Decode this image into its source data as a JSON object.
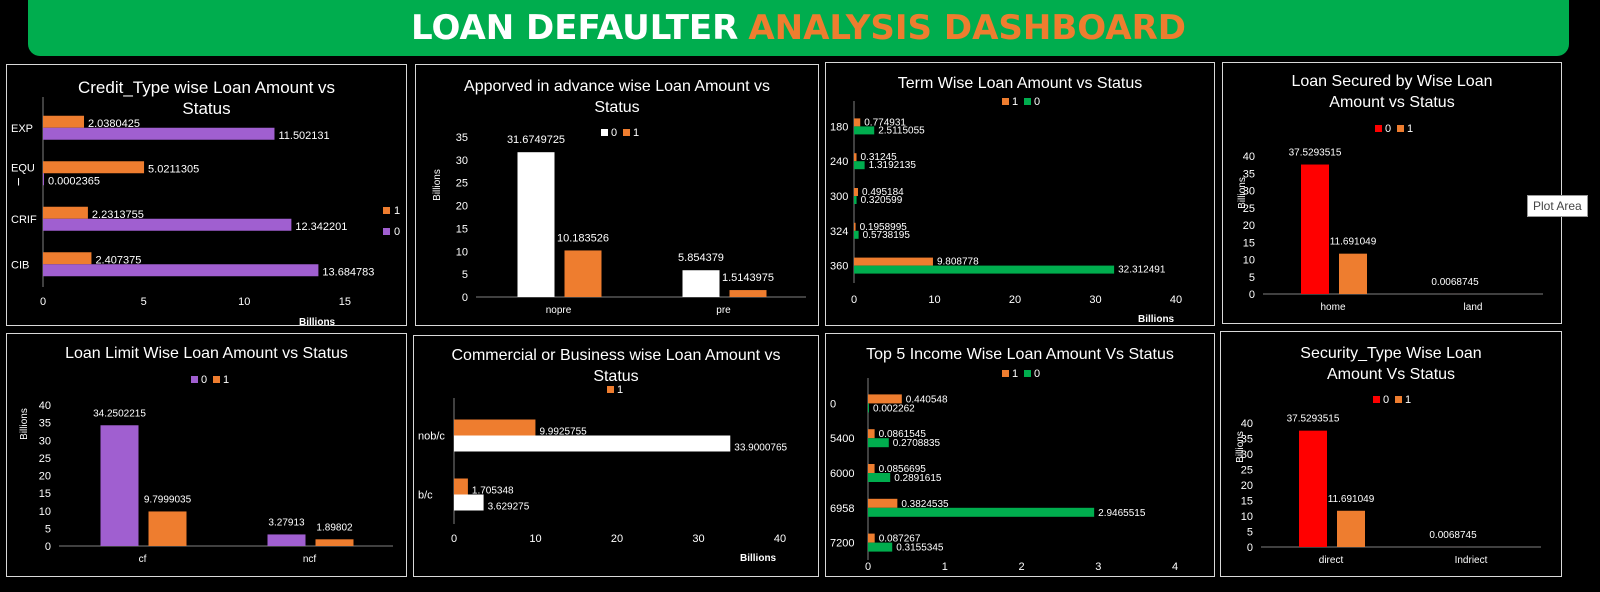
{
  "banner": {
    "title_white": "LOAN DEFAULTER",
    "title_orange": "ANALYSIS DASHBOARD"
  },
  "tooltip": "Plot Area",
  "colors": {
    "green": "#00ad4e",
    "orange": "#ee7d2f",
    "purple": "#a05fd0",
    "white": "#ffffff",
    "red": "#ff0000"
  },
  "chart_data": [
    {
      "id": "credit_type",
      "type": "bar",
      "orientation": "horizontal",
      "title": "Credit_Type wise Loan Amount vs Status",
      "categories": [
        "EXP",
        "EQU I",
        "CRIF",
        "CIB"
      ],
      "series": [
        {
          "name": "1",
          "color": "orange",
          "values": [
            2.0380425,
            5.0211305,
            2.2313755,
            2.407375
          ],
          "labels": [
            "2.0380425",
            "5.0211305",
            "2.2313755",
            "2.407375"
          ]
        },
        {
          "name": "0",
          "color": "purple",
          "values": [
            11.502131,
            0.0002365,
            12.342201,
            13.684783
          ],
          "labels": [
            "11.502131",
            "0.0002365",
            "12.342201",
            "13.684783"
          ]
        }
      ],
      "ticks": [
        "0",
        "5",
        "10",
        "15"
      ],
      "tick_values": [
        0,
        5,
        10,
        15
      ],
      "xlim": [
        0,
        16
      ],
      "unit_label": "Billions",
      "legend": "right"
    },
    {
      "id": "approved",
      "type": "bar",
      "orientation": "vertical",
      "title": "Apporved in advance wise Loan Amount vs Status",
      "categories": [
        "nopre",
        "pre"
      ],
      "series": [
        {
          "name": "0",
          "color": "white",
          "values": [
            31.6749725,
            5.854379
          ],
          "labels": [
            "31.6749725",
            "5.854379"
          ]
        },
        {
          "name": "1",
          "color": "orange",
          "values": [
            10.183526,
            1.5143975
          ],
          "labels": [
            "10.183526",
            "1.5143975"
          ]
        }
      ],
      "ticks": [
        "0",
        "5",
        "10",
        "15",
        "20",
        "25",
        "30",
        "35"
      ],
      "tick_values": [
        0,
        5,
        10,
        15,
        20,
        25,
        30,
        35
      ],
      "ylim": [
        0,
        35
      ],
      "unit_label": "Billions",
      "legend": "top"
    },
    {
      "id": "term",
      "type": "bar",
      "orientation": "horizontal",
      "title": "Term Wise Loan Amount vs Status",
      "categories": [
        "180",
        "240",
        "300",
        "324",
        "360"
      ],
      "series": [
        {
          "name": "1",
          "color": "orange",
          "values": [
            0.774931,
            0.31245,
            0.495184,
            0.1958995,
            9.808778
          ],
          "labels": [
            "0.774931",
            "0.31245",
            "0.495184",
            "0.1958995",
            "9.808778"
          ]
        },
        {
          "name": "0",
          "color": "green",
          "values": [
            2.5115055,
            1.3192135,
            0.320599,
            0.5738195,
            32.312491
          ],
          "labels": [
            "2.5115055",
            "1.3192135",
            "0.320599",
            "0.5738195",
            "32.312491"
          ]
        }
      ],
      "ticks": [
        "0",
        "10",
        "20",
        "30",
        "40"
      ],
      "tick_values": [
        0,
        10,
        20,
        30,
        40
      ],
      "xlim": [
        0,
        40
      ],
      "unit_label": "Billions",
      "legend": "top"
    },
    {
      "id": "secured",
      "type": "bar",
      "orientation": "vertical",
      "title": "Loan Secured by Wise Loan Amount vs Status",
      "categories": [
        "home",
        "land"
      ],
      "series": [
        {
          "name": "0",
          "color": "red",
          "values": [
            37.5293515,
            0.0068745
          ],
          "labels": [
            "37.5293515",
            "0.0068745"
          ]
        },
        {
          "name": "1",
          "color": "orange",
          "values": [
            11.691049,
            0
          ],
          "labels": [
            "11.691049",
            ""
          ]
        }
      ],
      "ticks": [
        "0",
        "5",
        "10",
        "15",
        "20",
        "25",
        "30",
        "35",
        "40"
      ],
      "tick_values": [
        0,
        5,
        10,
        15,
        20,
        25,
        30,
        35,
        40
      ],
      "ylim": [
        0,
        40
      ],
      "unit_label": "Billions",
      "legend": "top"
    },
    {
      "id": "limit",
      "type": "bar",
      "orientation": "vertical",
      "title": "Loan Limit Wise Loan Amount vs Status",
      "categories": [
        "cf",
        "ncf"
      ],
      "series": [
        {
          "name": "0",
          "color": "purple",
          "values": [
            34.2502215,
            3.27913
          ],
          "labels": [
            "34.2502215",
            "3.27913"
          ]
        },
        {
          "name": "1",
          "color": "orange",
          "values": [
            9.7999035,
            1.89802
          ],
          "labels": [
            "9.7999035",
            "1.89802"
          ]
        }
      ],
      "ticks": [
        "0",
        "5",
        "10",
        "15",
        "20",
        "25",
        "30",
        "35",
        "40"
      ],
      "tick_values": [
        0,
        5,
        10,
        15,
        20,
        25,
        30,
        35,
        40
      ],
      "ylim": [
        0,
        40
      ],
      "unit_label": "Billions",
      "legend": "top"
    },
    {
      "id": "commercial",
      "type": "bar",
      "orientation": "horizontal",
      "title": "Commercial or Business wise Loan Amount vs Status",
      "categories": [
        "nob/c",
        "b/c"
      ],
      "series": [
        {
          "name": "1",
          "color": "orange",
          "values": [
            9.9925755,
            1.705348
          ],
          "labels": [
            "9.9925755",
            "1.705348"
          ]
        },
        {
          "name": "",
          "color": "white",
          "values": [
            33.9000765,
            3.629275
          ],
          "labels": [
            "33.9000765",
            "3.629275"
          ]
        }
      ],
      "ticks": [
        "0",
        "10",
        "20",
        "30",
        "40"
      ],
      "tick_values": [
        0,
        10,
        20,
        30,
        40
      ],
      "xlim": [
        0,
        40
      ],
      "unit_label": "Billions",
      "legend": "top"
    },
    {
      "id": "income",
      "type": "bar",
      "orientation": "horizontal",
      "title": "Top 5 Income Wise Loan Amount Vs Status",
      "categories": [
        "0",
        "5400",
        "6000",
        "6958",
        "7200"
      ],
      "series": [
        {
          "name": "1",
          "color": "orange",
          "values": [
            0.440548,
            0.0861545,
            0.0856695,
            0.3824535,
            0.087267
          ],
          "labels": [
            "0.440548",
            "0.0861545",
            "0.0856695",
            "0.3824535",
            "0.087267"
          ]
        },
        {
          "name": "0",
          "color": "green",
          "values": [
            0.002262,
            0.2708835,
            0.2891615,
            2.9465515,
            0.3155345
          ],
          "labels": [
            "0.002262",
            "0.2708835",
            "0.2891615",
            "2.9465515",
            "0.3155345"
          ]
        }
      ],
      "ticks": [
        "0",
        "1",
        "2",
        "3",
        "4"
      ],
      "tick_values": [
        0,
        1,
        2,
        3,
        4
      ],
      "xlim": [
        0,
        4
      ],
      "unit_label": "",
      "legend": "top"
    },
    {
      "id": "security",
      "type": "bar",
      "orientation": "vertical",
      "title": "Security_Type Wise Loan Amount Vs Status",
      "categories": [
        "direct",
        "Indriect"
      ],
      "series": [
        {
          "name": "0",
          "color": "red",
          "values": [
            37.5293515,
            0.0068745
          ],
          "labels": [
            "37.5293515",
            "0.0068745"
          ]
        },
        {
          "name": "1",
          "color": "orange",
          "values": [
            11.691049,
            0
          ],
          "labels": [
            "11.691049",
            ""
          ]
        }
      ],
      "ticks": [
        "0",
        "5",
        "10",
        "15",
        "20",
        "25",
        "30",
        "35",
        "40"
      ],
      "tick_values": [
        0,
        5,
        10,
        15,
        20,
        25,
        30,
        35,
        40
      ],
      "ylim": [
        0,
        40
      ],
      "unit_label": "Billions",
      "legend": "top"
    }
  ]
}
